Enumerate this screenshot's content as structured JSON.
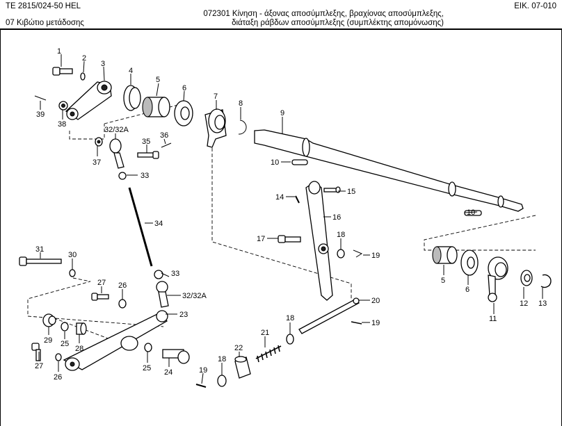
{
  "header": {
    "model": "TE 2815/024-50 HEL",
    "group": "07  Κιβώτιο μετάδοσης",
    "figure": "ΕΙΚ. 07-010",
    "title_line1": "072301  Κίνηση - άξονας αποσύμπλεξης, βραχίονας αποσύμπλεξης,",
    "title_line2": "διάταξη ράβδων αποσύμπλεξης (συμπλέκτης απομόνωσης)"
  },
  "callouts": [
    {
      "id": "c1",
      "text": "1"
    },
    {
      "id": "c2",
      "text": "2"
    },
    {
      "id": "c3",
      "text": "3"
    },
    {
      "id": "c4",
      "text": "4"
    },
    {
      "id": "c5a",
      "text": "5"
    },
    {
      "id": "c6a",
      "text": "6"
    },
    {
      "id": "c7",
      "text": "7"
    },
    {
      "id": "c8",
      "text": "8"
    },
    {
      "id": "c9",
      "text": "9"
    },
    {
      "id": "c10a",
      "text": "10"
    },
    {
      "id": "c10b",
      "text": "10"
    },
    {
      "id": "c39",
      "text": "39"
    },
    {
      "id": "c38",
      "text": "38"
    },
    {
      "id": "c3232a",
      "text": "32/32A"
    },
    {
      "id": "c35",
      "text": "35"
    },
    {
      "id": "c36",
      "text": "36"
    },
    {
      "id": "c37",
      "text": "37"
    },
    {
      "id": "c33a",
      "text": "33"
    },
    {
      "id": "c34",
      "text": "34"
    },
    {
      "id": "c14",
      "text": "14"
    },
    {
      "id": "c15",
      "text": "15"
    },
    {
      "id": "c16",
      "text": "16"
    },
    {
      "id": "c17",
      "text": "17"
    },
    {
      "id": "c18a",
      "text": "18"
    },
    {
      "id": "c19a",
      "text": "19"
    },
    {
      "id": "c31",
      "text": "31"
    },
    {
      "id": "c30",
      "text": "30"
    },
    {
      "id": "c33b",
      "text": "33"
    },
    {
      "id": "c27a",
      "text": "27"
    },
    {
      "id": "c26a",
      "text": "26"
    },
    {
      "id": "c3232b",
      "text": "32/32A"
    },
    {
      "id": "c23",
      "text": "23"
    },
    {
      "id": "c29",
      "text": "29"
    },
    {
      "id": "c25a",
      "text": "25"
    },
    {
      "id": "c28",
      "text": "28"
    },
    {
      "id": "c27b",
      "text": "27"
    },
    {
      "id": "c26b",
      "text": "26"
    },
    {
      "id": "c25b",
      "text": "25"
    },
    {
      "id": "c24",
      "text": "24"
    },
    {
      "id": "c19b",
      "text": "19"
    },
    {
      "id": "c18b",
      "text": "18"
    },
    {
      "id": "c22",
      "text": "22"
    },
    {
      "id": "c21",
      "text": "21"
    },
    {
      "id": "c18c",
      "text": "18"
    },
    {
      "id": "c20",
      "text": "20"
    },
    {
      "id": "c19c",
      "text": "19"
    },
    {
      "id": "c5b",
      "text": "5"
    },
    {
      "id": "c6b",
      "text": "6"
    },
    {
      "id": "c11",
      "text": "11"
    },
    {
      "id": "c12",
      "text": "12"
    },
    {
      "id": "c13",
      "text": "13"
    }
  ]
}
